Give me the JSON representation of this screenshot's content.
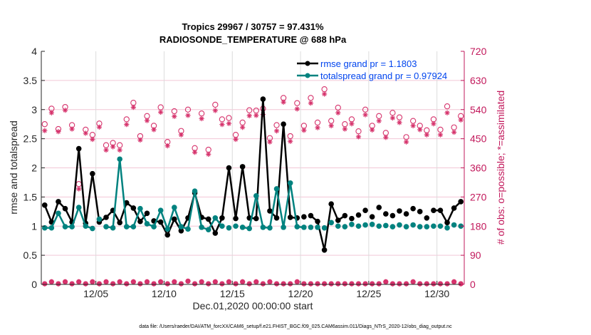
{
  "chart_data": {
    "type": "line",
    "title": [
      "Tropics 29967 / 30757 = 97.431%",
      "RADIOSONDE_TEMPERATURE @ 688 hPa"
    ],
    "xlabel": "Dec.01,2020 00:00:00 start",
    "ylabel": "rmse and totalspread",
    "ylabel_right": "# of obs: o=possible; *=assimilated",
    "footer": "data file: /Users/raeder/DAI/ATM_forcXX/CAM6_setup/f.e21.FHIST_BGC.f09_025.CAM6assim.011/Diags_NTrS_2020-12/obs_diag_output.nc",
    "xlim_days": [
      0,
      31
    ],
    "ylim": [
      0,
      4
    ],
    "ylim_right": [
      0,
      720
    ],
    "x_ticks": [
      {
        "day": 4,
        "label": "12/05"
      },
      {
        "day": 9,
        "label": "12/10"
      },
      {
        "day": 14,
        "label": "12/15"
      },
      {
        "day": 19,
        "label": "12/20"
      },
      {
        "day": 24,
        "label": "12/25"
      },
      {
        "day": 29,
        "label": "12/30"
      }
    ],
    "y_ticks": [
      "0",
      "0.5",
      "1",
      "1.5",
      "2",
      "2.5",
      "3",
      "3.5",
      "4"
    ],
    "y_tick_values": [
      0,
      0.5,
      1,
      1.5,
      2,
      2.5,
      3,
      3.5,
      4
    ],
    "y_ticks_right": [
      "0",
      "90",
      "180",
      "270",
      "360",
      "450",
      "540",
      "630",
      "720"
    ],
    "y_tick_values_right": [
      0,
      90,
      180,
      270,
      360,
      450,
      540,
      630,
      720
    ],
    "grid": true,
    "legend_position": "top-right",
    "time_step_days": 0.5,
    "series": [
      {
        "name": "rmse grand pr = 1.1803",
        "color": "#000000",
        "values": [
          1.36,
          1.07,
          1.42,
          1.3,
          1.07,
          2.33,
          1.05,
          1.9,
          1.07,
          1.15,
          1.27,
          1.06,
          1.4,
          1.31,
          1.08,
          1.22,
          1.09,
          1.07,
          0.85,
          1.12,
          0.92,
          1.14,
          1.57,
          1.15,
          1.12,
          0.88,
          1.14,
          2.0,
          1.13,
          2.02,
          1.14,
          1.13,
          3.18,
          1.26,
          1.14,
          2.75,
          1.15,
          1.14,
          1.16,
          1.18,
          1.08,
          0.59,
          1.38,
          1.1,
          1.18,
          1.13,
          1.19,
          1.27,
          1.16,
          1.32,
          1.21,
          1.18,
          1.26,
          1.21,
          1.3,
          1.25,
          1.14,
          1.27,
          1.27,
          1.06,
          1.31,
          1.42
        ],
        "segments_note": "line drawn only between consecutive valid points with peaks"
      },
      {
        "name": "totalspread grand pr = 0.97924",
        "color": "#00827f",
        "values": [
          0.97,
          0.97,
          1.22,
          0.99,
          0.99,
          1.32,
          1.0,
          0.96,
          1.12,
          0.99,
          0.97,
          2.15,
          0.99,
          0.99,
          1.3,
          1.04,
          0.99,
          1.27,
          0.95,
          1.32,
          0.99,
          0.95,
          1.6,
          0.98,
          0.94,
          1.14,
          1.0,
          0.97,
          1.0,
          0.98,
          0.96,
          1.52,
          0.98,
          0.97,
          1.64,
          0.98,
          1.74,
          0.99,
          0.98,
          0.98,
          0.98,
          0.97,
          1.06,
          1.0,
          0.99,
          1.03,
          1.0,
          1.02,
          1.03,
          1.0,
          1.01,
          0.99,
          1.02,
          0.99,
          1.02,
          0.99,
          0.99,
          1.0,
          1.0,
          0.97,
          1.02,
          1.0
        ]
      }
    ],
    "obs_series": [
      {
        "name": "possible (o)",
        "color": "#d6336c",
        "values": [
          495,
          543,
          480,
          548,
          492,
          310,
          478,
          462,
          497,
          430,
          437,
          430,
          510,
          561,
          458,
          520,
          490,
          547,
          440,
          535,
          474,
          540,
          421,
          528,
          416,
          555,
          510,
          514,
          462,
          500,
          538,
          537,
          543,
          452,
          492,
          576,
          458,
          560,
          490,
          576,
          500,
          603,
          505,
          546,
          495,
          510,
          473,
          540,
          490,
          520,
          468,
          530,
          516,
          455,
          505,
          490,
          476,
          510,
          478,
          550,
          485,
          520
        ]
      },
      {
        "name": "assimilated (*)",
        "color": "#d6336c",
        "values": [
          475,
          530,
          472,
          538,
          480,
          295,
          467,
          448,
          486,
          415,
          425,
          415,
          494,
          547,
          446,
          506,
          478,
          532,
          428,
          519,
          462,
          522,
          408,
          512,
          402,
          537,
          494,
          497,
          448,
          485,
          521,
          522,
          525,
          440,
          474,
          563,
          442,
          542,
          476,
          560,
          484,
          588,
          490,
          530,
          480,
          496,
          456,
          524,
          477,
          505,
          454,
          514,
          500,
          440,
          490,
          478,
          462,
          496,
          462,
          530,
          470,
          508
        ]
      },
      {
        "name": "possible near zero (o)",
        "color": "#d6336c",
        "values": [
          2,
          8,
          2,
          8,
          2,
          8,
          2,
          8,
          2,
          8,
          2,
          8,
          2,
          8,
          2,
          8,
          2,
          8,
          2,
          8,
          2,
          10,
          2,
          8,
          2,
          8,
          2,
          8,
          2,
          8,
          2,
          8,
          2,
          8,
          2,
          2,
          2,
          8,
          2,
          2,
          2,
          2,
          2,
          2,
          2,
          2,
          2,
          2,
          2,
          2,
          8,
          2,
          2,
          2,
          8,
          2,
          2,
          2,
          2,
          2,
          8,
          2
        ]
      }
    ]
  }
}
